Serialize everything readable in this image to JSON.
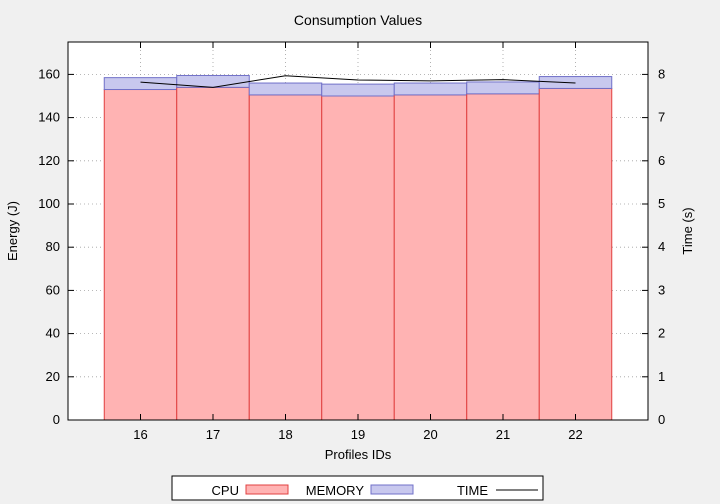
{
  "chart_data": {
    "type": "bar",
    "title": "Consumption Values",
    "xlabel": "Profiles IDs",
    "ylabel": "Energy (J)",
    "y2label": "Time (s)",
    "categories": [
      "16",
      "17",
      "18",
      "19",
      "20",
      "21",
      "22"
    ],
    "ylim": [
      0,
      175
    ],
    "y2lim": [
      0,
      8.75
    ],
    "yticks": [
      0,
      20,
      40,
      60,
      80,
      100,
      120,
      140,
      160
    ],
    "y2ticks": [
      0,
      1,
      2,
      3,
      4,
      5,
      6,
      7,
      8
    ],
    "stacked": true,
    "grid": true,
    "legend_position": "bottom",
    "series": [
      {
        "name": "CPU",
        "type": "bar",
        "axis": "y",
        "color": "#ffb3b3",
        "edge_color": "#e04040",
        "values": [
          153,
          154,
          150.5,
          150,
          150.5,
          151,
          153.5
        ]
      },
      {
        "name": "MEMORY",
        "type": "bar",
        "axis": "y",
        "color": "#c8c8ee",
        "edge_color": "#7070c8",
        "values": [
          5.5,
          5.5,
          5.5,
          5.5,
          5.5,
          5.5,
          5.5
        ]
      },
      {
        "name": "TIME",
        "type": "line",
        "axis": "y2",
        "color": "#000000",
        "values": [
          7.82,
          7.7,
          7.97,
          7.87,
          7.85,
          7.88,
          7.8
        ]
      }
    ]
  }
}
